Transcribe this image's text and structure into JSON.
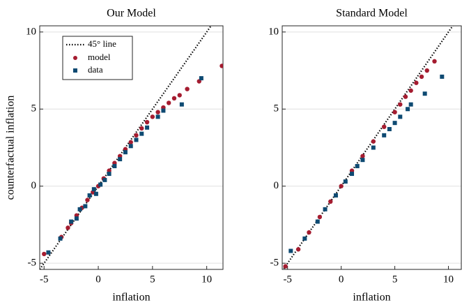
{
  "chart_data": [
    {
      "type": "scatter",
      "title": "Our Model",
      "xlabel": "inflation",
      "ylabel": "counterfactual inflation",
      "xlim": [
        -5.4,
        11.5
      ],
      "ylim": [
        -5.4,
        10.4
      ],
      "xticks": [
        -5,
        0,
        5,
        10
      ],
      "yticks": [
        -5,
        0,
        5,
        10
      ],
      "grid": true,
      "diagonal": true,
      "diagonal_label": "45° line",
      "legend": "upper left",
      "series": [
        {
          "name": "model",
          "color": "#a51c30",
          "x": [
            -5,
            -3.4,
            -2.8,
            -2.5,
            -2,
            -1.5,
            -1,
            -0.5,
            0,
            0.5,
            1,
            1.5,
            2,
            2.5,
            3,
            3.5,
            4,
            4.5,
            5,
            5.5,
            6,
            6.5,
            7,
            7.5,
            8.2,
            9.3,
            11.4
          ],
          "values": [
            -4.4,
            -3.3,
            -2.7,
            -2.4,
            -1.9,
            -1.4,
            -0.9,
            -0.4,
            0,
            0.5,
            1,
            1.5,
            1.95,
            2.4,
            2.85,
            3.3,
            3.75,
            4.15,
            4.5,
            4.8,
            5.1,
            5.4,
            5.7,
            5.9,
            6.3,
            6.8,
            7.8
          ]
        },
        {
          "name": "data",
          "color": "#0e4a72",
          "x": [
            -4.6,
            -3.5,
            -2.5,
            -2,
            -1.7,
            -1.2,
            -0.8,
            -0.4,
            -0.2,
            0.2,
            0.6,
            1,
            1.5,
            2,
            2.5,
            3,
            3.5,
            4,
            4.5,
            5.5,
            6,
            7.7,
            9.5
          ],
          "values": [
            -4.3,
            -3.4,
            -2.3,
            -2.1,
            -1.5,
            -1.3,
            -0.6,
            -0.2,
            -0.5,
            0.1,
            0.4,
            0.8,
            1.3,
            1.75,
            2.2,
            2.6,
            3,
            3.4,
            3.8,
            4.5,
            4.9,
            5.3,
            7
          ]
        }
      ]
    },
    {
      "type": "scatter",
      "title": "Standard Model",
      "xlabel": "inflation",
      "xlim": [
        -5.5,
        11.2
      ],
      "ylim": [
        -5.4,
        10.4
      ],
      "xticks": [
        -5,
        0,
        5,
        10
      ],
      "yticks": [
        -5,
        0,
        5,
        10
      ],
      "grid": true,
      "diagonal": true,
      "series": [
        {
          "color": "#a51c30",
          "x": [
            -5.2,
            -4,
            -3,
            -2,
            -1,
            0,
            1,
            2,
            3,
            4,
            5,
            5.5,
            6,
            6.5,
            7,
            7.5,
            8,
            8.7
          ],
          "values": [
            -5.2,
            -4.1,
            -3,
            -2,
            -1,
            0,
            1,
            1.95,
            2.9,
            3.85,
            4.8,
            5.3,
            5.8,
            6.2,
            6.7,
            7.1,
            7.5,
            8.1
          ]
        },
        {
          "color": "#0e4a72",
          "x": [
            -4.7,
            -3.4,
            -2.2,
            -1.5,
            -0.5,
            0.4,
            1,
            1.5,
            2,
            3,
            4,
            4.5,
            5,
            5.5,
            6.2,
            6.5,
            7.8,
            9.4
          ],
          "values": [
            -4.2,
            -3.4,
            -2.3,
            -1.5,
            -0.6,
            0.3,
            0.8,
            1.3,
            1.7,
            2.5,
            3.3,
            3.7,
            4.1,
            4.5,
            5,
            5.3,
            6,
            7.1
          ]
        }
      ]
    }
  ]
}
